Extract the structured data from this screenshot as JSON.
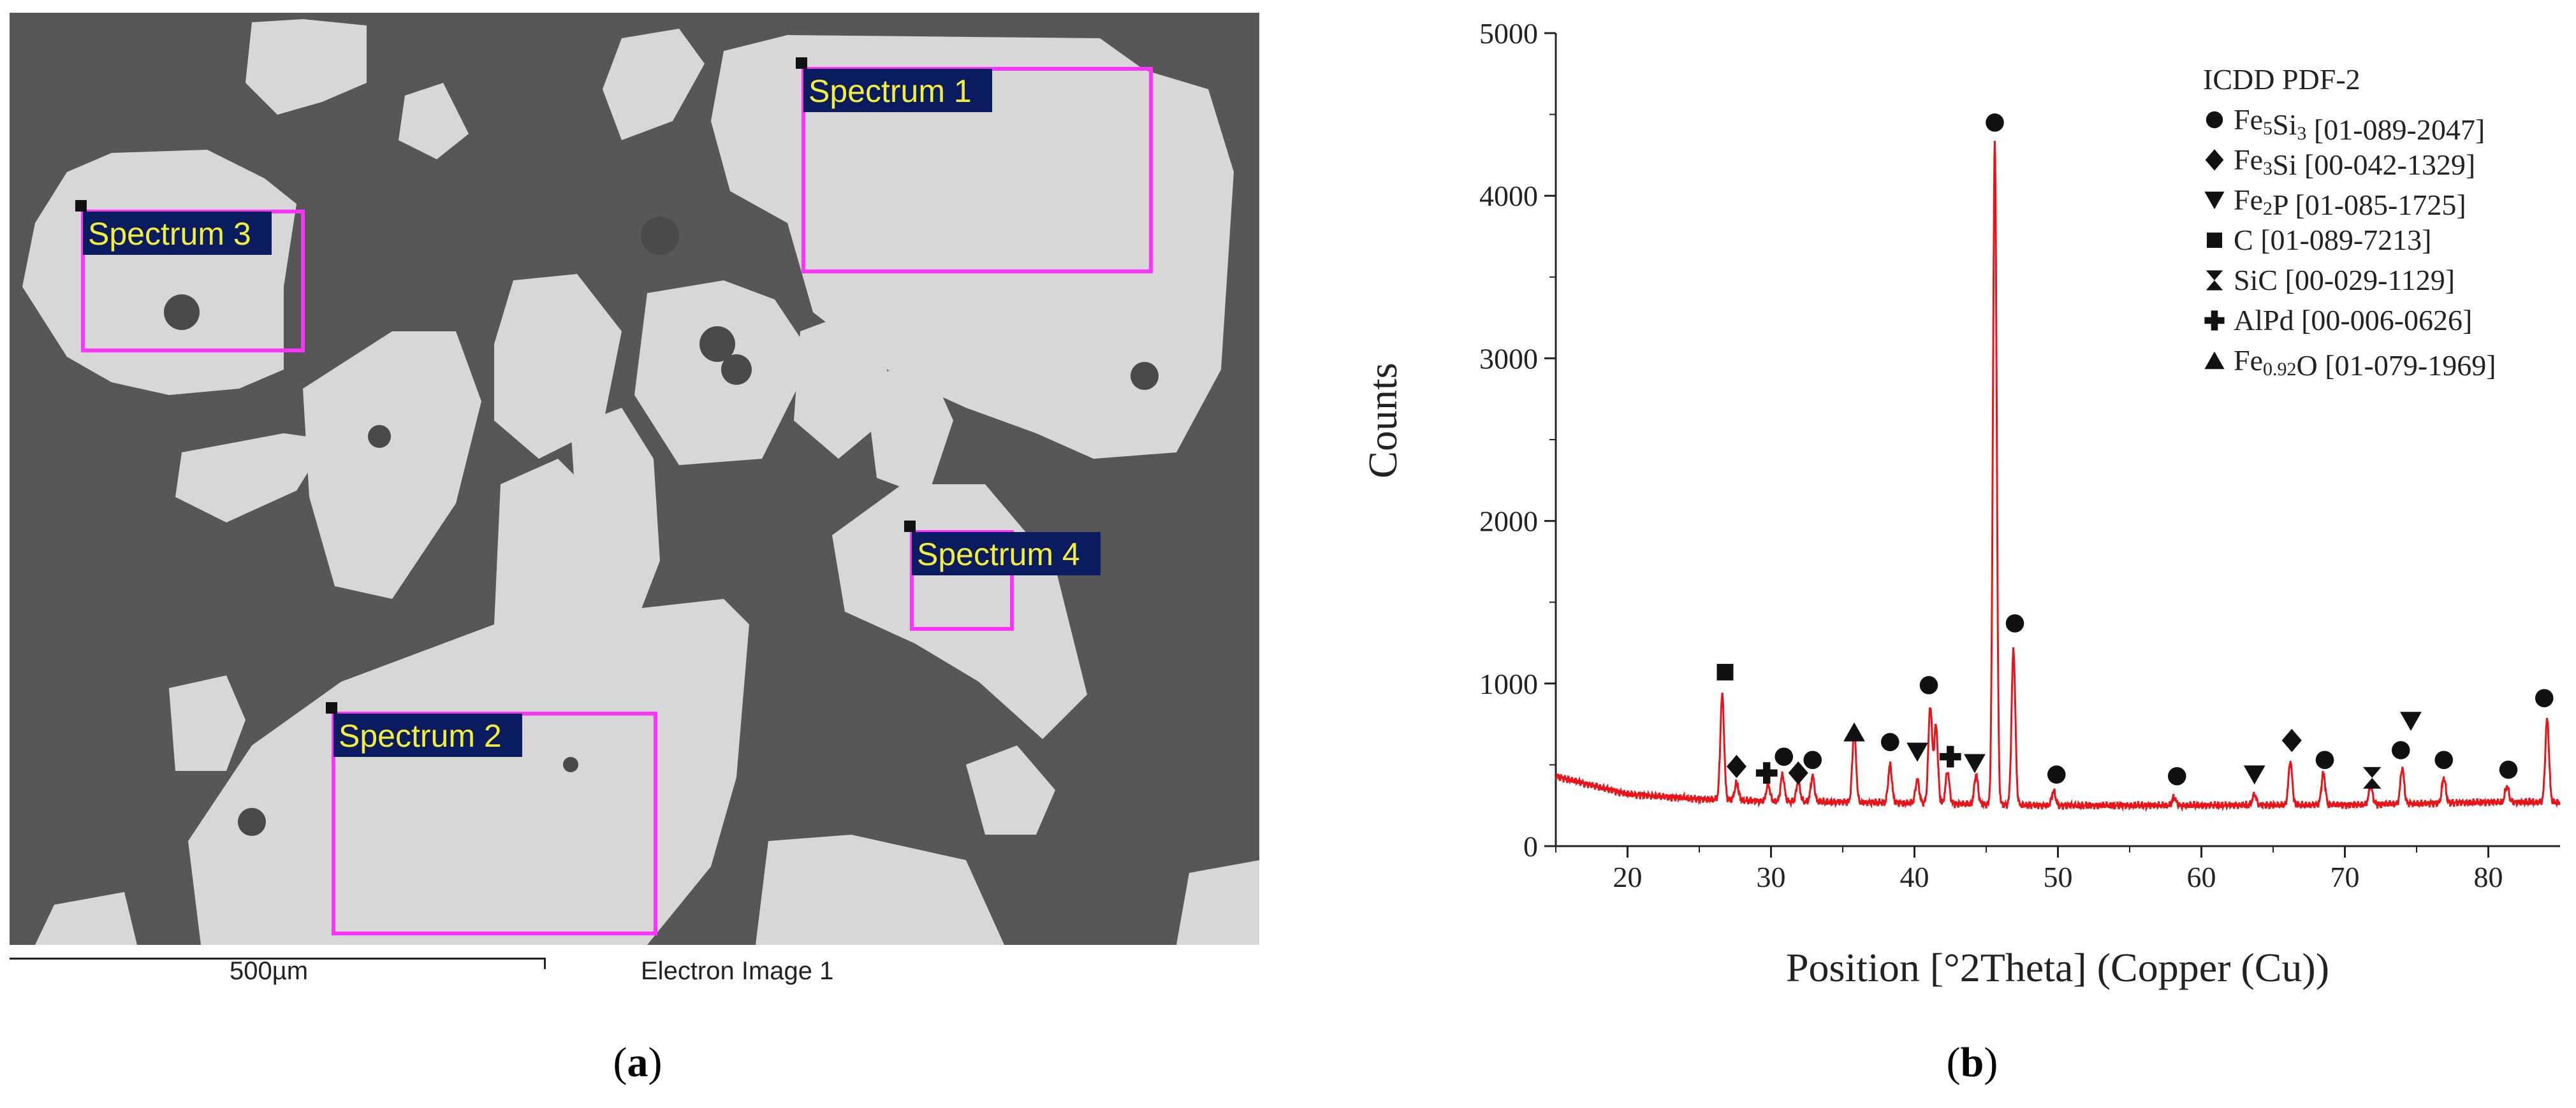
{
  "panel_a": {
    "caption_letter": "a",
    "image_title": "Electron Image 1",
    "scale_label": "500µm",
    "spectra": [
      {
        "label": "Spectrum 1"
      },
      {
        "label": "Spectrum 2"
      },
      {
        "label": "Spectrum 3"
      },
      {
        "label": "Spectrum 4"
      }
    ],
    "colors": {
      "background": "#595959",
      "particle": "#d9d9d9",
      "box": "#ff33ff",
      "label_bg": "#0b1b60",
      "label_text": "#f2ef3a"
    }
  },
  "panel_b": {
    "caption_letter": "b"
  },
  "chart_data": {
    "type": "line",
    "title": "",
    "xlabel": "Position [°2Theta] (Copper (Cu))",
    "ylabel": "Counts",
    "xlim": [
      15,
      85
    ],
    "ylim": [
      0,
      5000
    ],
    "x_ticks": [
      20,
      30,
      40,
      50,
      60,
      70,
      80
    ],
    "y_ticks": [
      0,
      1000,
      2000,
      3000,
      4000,
      5000
    ],
    "grid": false,
    "line_color": "#e8141a",
    "baseline": [
      [
        15,
        430
      ],
      [
        20,
        320
      ],
      [
        25,
        290
      ],
      [
        30,
        275
      ],
      [
        40,
        265
      ],
      [
        50,
        250
      ],
      [
        60,
        250
      ],
      [
        70,
        255
      ],
      [
        80,
        270
      ],
      [
        85,
        270
      ]
    ],
    "peaks": [
      {
        "x": 26.6,
        "y": 930
      },
      {
        "x": 27.6,
        "y": 390
      },
      {
        "x": 29.8,
        "y": 380
      },
      {
        "x": 30.8,
        "y": 440
      },
      {
        "x": 31.9,
        "y": 400
      },
      {
        "x": 32.9,
        "y": 430
      },
      {
        "x": 35.8,
        "y": 710
      },
      {
        "x": 38.3,
        "y": 500
      },
      {
        "x": 40.2,
        "y": 410
      },
      {
        "x": 41.1,
        "y": 860
      },
      {
        "x": 41.5,
        "y": 740
      },
      {
        "x": 42.3,
        "y": 460
      },
      {
        "x": 44.3,
        "y": 440
      },
      {
        "x": 45.6,
        "y": 4320
      },
      {
        "x": 46.9,
        "y": 1210
      },
      {
        "x": 49.7,
        "y": 340
      },
      {
        "x": 58.1,
        "y": 300
      },
      {
        "x": 63.7,
        "y": 320
      },
      {
        "x": 66.2,
        "y": 520
      },
      {
        "x": 68.5,
        "y": 450
      },
      {
        "x": 71.8,
        "y": 370
      },
      {
        "x": 74.0,
        "y": 480
      },
      {
        "x": 76.9,
        "y": 420
      },
      {
        "x": 81.3,
        "y": 370
      },
      {
        "x": 84.1,
        "y": 780
      }
    ],
    "legend": {
      "title": "ICDD PDF-2",
      "placement": "top-right",
      "entries": [
        {
          "symbol": "circle",
          "formula": "Fe",
          "sub1": "5",
          "formula2": "Si",
          "sub2": "3",
          "ref": "[01-089-2047]"
        },
        {
          "symbol": "diamond",
          "formula": "Fe",
          "sub1": "3",
          "formula2": "Si",
          "sub2": "",
          "ref": "[00-042-1329]"
        },
        {
          "symbol": "triangle-down",
          "formula": "Fe",
          "sub1": "2",
          "formula2": "P",
          "sub2": "",
          "ref": "[01-085-1725]"
        },
        {
          "symbol": "square",
          "formula": "C",
          "sub1": "",
          "formula2": "",
          "sub2": "",
          "ref": "[01-089-7213]"
        },
        {
          "symbol": "hourglass",
          "formula": "SiC",
          "sub1": "",
          "formula2": "",
          "sub2": "",
          "ref": "[00-029-1129]"
        },
        {
          "symbol": "cross",
          "formula": "AlPd",
          "sub1": "",
          "formula2": "",
          "sub2": "",
          "ref": "[00-006-0626]"
        },
        {
          "symbol": "triangle-up",
          "formula": "Fe",
          "sub1": "0.92",
          "formula2": "O",
          "sub2": "",
          "ref": "[01-079-1969]"
        }
      ]
    },
    "markers": [
      {
        "phase": "circle",
        "x": 45.6,
        "y": 4450
      },
      {
        "phase": "circle",
        "x": 47.0,
        "y": 1370
      },
      {
        "phase": "circle",
        "x": 41.0,
        "y": 990
      },
      {
        "phase": "circle",
        "x": 38.3,
        "y": 640
      },
      {
        "phase": "circle",
        "x": 30.9,
        "y": 550
      },
      {
        "phase": "circle",
        "x": 32.9,
        "y": 530
      },
      {
        "phase": "circle",
        "x": 49.9,
        "y": 440
      },
      {
        "phase": "circle",
        "x": 58.3,
        "y": 430
      },
      {
        "phase": "circle",
        "x": 68.6,
        "y": 530
      },
      {
        "phase": "circle",
        "x": 73.9,
        "y": 590
      },
      {
        "phase": "circle",
        "x": 76.9,
        "y": 530
      },
      {
        "phase": "circle",
        "x": 81.4,
        "y": 470
      },
      {
        "phase": "circle",
        "x": 83.9,
        "y": 910
      },
      {
        "phase": "diamond",
        "x": 27.6,
        "y": 490
      },
      {
        "phase": "diamond",
        "x": 31.9,
        "y": 450
      },
      {
        "phase": "diamond",
        "x": 66.3,
        "y": 650
      },
      {
        "phase": "triangle-down",
        "x": 40.2,
        "y": 580
      },
      {
        "phase": "triangle-down",
        "x": 44.2,
        "y": 510
      },
      {
        "phase": "triangle-down",
        "x": 63.7,
        "y": 440
      },
      {
        "phase": "triangle-down",
        "x": 74.6,
        "y": 770
      },
      {
        "phase": "square",
        "x": 26.8,
        "y": 1070
      },
      {
        "phase": "hourglass",
        "x": 71.9,
        "y": 420
      },
      {
        "phase": "cross",
        "x": 29.7,
        "y": 450
      },
      {
        "phase": "cross",
        "x": 42.5,
        "y": 550
      },
      {
        "phase": "triangle-up",
        "x": 35.8,
        "y": 700
      }
    ]
  }
}
